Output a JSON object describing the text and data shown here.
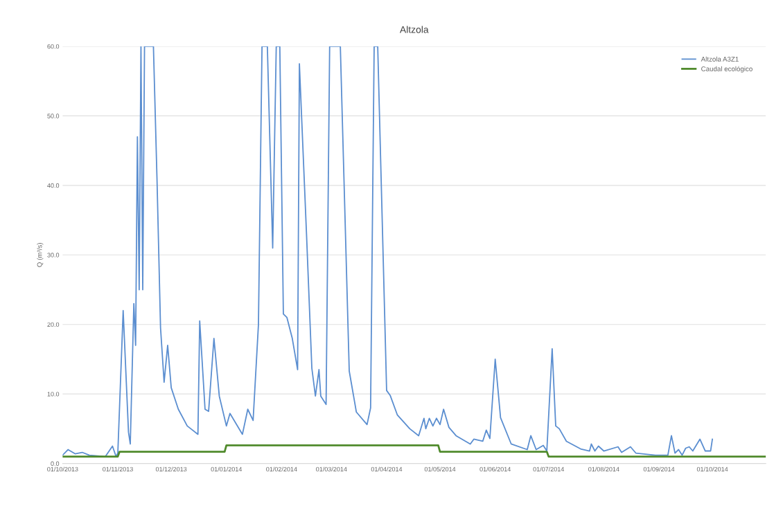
{
  "chart_data": {
    "type": "line",
    "title": "Altzola",
    "ylabel": "Q (m³/s)",
    "xlim": [
      "2013-10-01",
      "2014-10-31"
    ],
    "ylim": [
      0,
      60
    ],
    "yticks": [
      {
        "value": 0,
        "label": "0.0"
      },
      {
        "value": 10,
        "label": "10.0"
      },
      {
        "value": 20,
        "label": "20.0"
      },
      {
        "value": 30,
        "label": "30.0"
      },
      {
        "value": 40,
        "label": "40.0"
      },
      {
        "value": 50,
        "label": "50.0"
      },
      {
        "value": 60,
        "label": "60.0"
      }
    ],
    "xticks": [
      {
        "value": "2013-10-01",
        "label": "01/10/2013"
      },
      {
        "value": "2013-11-01",
        "label": "01/11/2013"
      },
      {
        "value": "2013-12-01",
        "label": "01/12/2013"
      },
      {
        "value": "2014-01-01",
        "label": "01/01/2014"
      },
      {
        "value": "2014-02-01",
        "label": "01/02/2014"
      },
      {
        "value": "2014-03-01",
        "label": "01/03/2014"
      },
      {
        "value": "2014-04-01",
        "label": "01/04/2014"
      },
      {
        "value": "2014-05-01",
        "label": "01/05/2014"
      },
      {
        "value": "2014-06-01",
        "label": "01/06/2014"
      },
      {
        "value": "2014-07-01",
        "label": "01/07/2014"
      },
      {
        "value": "2014-08-01",
        "label": "01/08/2014"
      },
      {
        "value": "2014-09-01",
        "label": "01/09/2014"
      },
      {
        "value": "2014-10-01",
        "label": "01/10/2014"
      }
    ],
    "grid": "y",
    "legend": "top right",
    "marker": "none",
    "line_style": "solid",
    "series": [
      {
        "name": "Altzola A3Z1",
        "color": "#5b8ed0",
        "x": [
          "2013-10-01",
          "2013-10-04",
          "2013-10-08",
          "2013-10-12",
          "2013-10-16",
          "2013-10-25",
          "2013-10-29",
          "2013-10-31",
          "2013-11-01",
          "2013-11-04",
          "2013-11-07",
          "2013-11-08",
          "2013-11-10",
          "2013-11-11",
          "2013-11-12",
          "2013-11-13",
          "2013-11-14",
          "2013-11-15",
          "2013-11-16",
          "2013-11-21",
          "2013-11-23",
          "2013-11-25",
          "2013-11-27",
          "2013-11-29",
          "2013-12-01",
          "2013-12-05",
          "2013-12-10",
          "2013-12-12",
          "2013-12-16",
          "2013-12-17",
          "2013-12-20",
          "2013-12-22",
          "2013-12-25",
          "2013-12-28",
          "2014-01-01",
          "2014-01-03",
          "2014-01-10",
          "2014-01-13",
          "2014-01-16",
          "2014-01-19",
          "2014-01-21",
          "2014-01-24",
          "2014-01-27",
          "2014-01-29",
          "2014-01-31",
          "2014-02-02",
          "2014-02-04",
          "2014-02-07",
          "2014-02-10",
          "2014-02-11",
          "2014-02-15",
          "2014-02-18",
          "2014-02-20",
          "2014-02-22",
          "2014-02-23",
          "2014-02-26",
          "2014-02-28",
          "2014-03-06",
          "2014-03-11",
          "2014-03-15",
          "2014-03-21",
          "2014-03-23",
          "2014-03-25",
          "2014-03-27",
          "2014-04-01",
          "2014-04-03",
          "2014-04-07",
          "2014-04-14",
          "2014-04-19",
          "2014-04-22",
          "2014-04-23",
          "2014-04-25",
          "2014-04-27",
          "2014-04-29",
          "2014-05-01",
          "2014-05-03",
          "2014-05-06",
          "2014-05-10",
          "2014-05-18",
          "2014-05-20",
          "2014-05-25",
          "2014-05-27",
          "2014-05-29",
          "2014-06-01",
          "2014-06-04",
          "2014-06-10",
          "2014-06-19",
          "2014-06-21",
          "2014-06-24",
          "2014-06-28",
          "2014-06-30",
          "2014-07-03",
          "2014-07-05",
          "2014-07-07",
          "2014-07-11",
          "2014-07-19",
          "2014-07-24",
          "2014-07-25",
          "2014-07-27",
          "2014-07-29",
          "2014-08-01",
          "2014-08-09",
          "2014-08-11",
          "2014-08-16",
          "2014-08-19",
          "2014-08-30",
          "2014-09-06",
          "2014-09-08",
          "2014-09-10",
          "2014-09-12",
          "2014-09-14",
          "2014-09-16",
          "2014-09-18",
          "2014-09-20",
          "2014-09-24",
          "2014-09-27",
          "2014-09-30",
          "2014-10-01"
        ],
        "values": [
          1.2,
          2.0,
          1.4,
          1.6,
          1.2,
          1.0,
          2.5,
          1.0,
          1.5,
          22.0,
          4.5,
          2.8,
          23.0,
          17.0,
          47.0,
          25.0,
          60,
          25.0,
          60,
          60,
          41.0,
          19.5,
          11.7,
          17.0,
          10.9,
          7.8,
          5.4,
          5.0,
          4.2,
          20.5,
          7.8,
          7.5,
          18.0,
          9.7,
          5.4,
          7.2,
          4.2,
          7.8,
          6.2,
          20.0,
          60,
          60,
          31.0,
          60,
          60,
          21.5,
          21.0,
          18.0,
          13.5,
          57.5,
          33.0,
          13.7,
          9.7,
          13.5,
          9.7,
          8.5,
          60,
          60,
          13.3,
          7.4,
          5.6,
          8.0,
          60,
          60,
          10.5,
          9.8,
          7.0,
          5.0,
          4.0,
          6.5,
          5.0,
          6.5,
          5.4,
          6.5,
          5.6,
          7.8,
          5.2,
          4.0,
          2.8,
          3.5,
          3.2,
          4.8,
          3.6,
          15.0,
          6.6,
          2.8,
          2.0,
          4.0,
          2.0,
          2.6,
          1.8,
          16.5,
          5.4,
          5.0,
          3.2,
          2.1,
          1.8,
          2.8,
          1.8,
          2.5,
          1.8,
          2.4,
          1.6,
          2.4,
          1.5,
          1.2,
          1.2,
          4.0,
          1.5,
          2.0,
          1.2,
          2.2,
          2.4,
          1.8,
          3.5,
          1.8,
          1.8,
          3.5
        ]
      },
      {
        "name": "Caudal ecológico",
        "color": "#4f8a2b",
        "x": [
          "2013-10-01",
          "2013-11-01",
          "2013-11-02",
          "2013-12-31",
          "2014-01-01",
          "2014-04-30",
          "2014-05-01",
          "2014-06-30",
          "2014-07-01",
          "2014-10-31"
        ],
        "values": [
          1.0,
          1.0,
          1.7,
          1.7,
          2.6,
          2.6,
          1.7,
          1.7,
          1.0,
          1.0
        ]
      }
    ]
  }
}
